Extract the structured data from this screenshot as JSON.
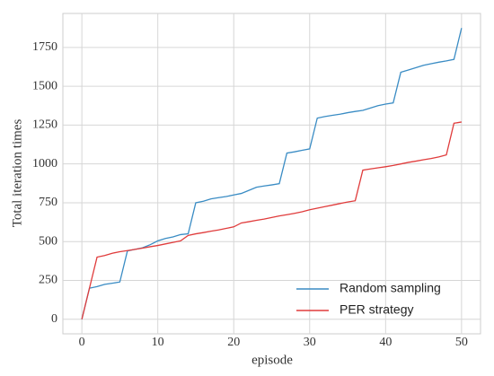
{
  "chart_data": {
    "type": "line",
    "xlabel": "episode",
    "ylabel": "Total iteration times",
    "x": [
      0,
      1,
      2,
      3,
      4,
      5,
      6,
      7,
      8,
      9,
      10,
      11,
      12,
      13,
      14,
      15,
      16,
      17,
      18,
      19,
      20,
      21,
      22,
      23,
      24,
      25,
      26,
      27,
      28,
      29,
      30,
      31,
      32,
      33,
      34,
      35,
      36,
      37,
      38,
      39,
      40,
      41,
      42,
      43,
      44,
      45,
      46,
      47,
      48,
      49,
      50
    ],
    "series": [
      {
        "name": "Random sampling",
        "color": "#3a8cc4",
        "values": [
          0,
          200,
          210,
          225,
          232,
          240,
          440,
          450,
          460,
          480,
          505,
          520,
          530,
          545,
          550,
          750,
          760,
          775,
          783,
          790,
          800,
          810,
          830,
          850,
          858,
          865,
          873,
          1070,
          1078,
          1088,
          1097,
          1295,
          1305,
          1313,
          1320,
          1330,
          1338,
          1345,
          1360,
          1375,
          1385,
          1393,
          1590,
          1605,
          1620,
          1635,
          1645,
          1655,
          1663,
          1673,
          1875
        ]
      },
      {
        "name": "PER strategy",
        "color": "#e03c3c",
        "values": [
          0,
          200,
          400,
          410,
          425,
          435,
          442,
          450,
          458,
          467,
          475,
          485,
          495,
          505,
          540,
          550,
          558,
          567,
          575,
          585,
          595,
          620,
          628,
          637,
          645,
          655,
          665,
          673,
          682,
          692,
          705,
          715,
          725,
          735,
          745,
          755,
          763,
          960,
          968,
          975,
          982,
          990,
          1000,
          1010,
          1018,
          1027,
          1035,
          1045,
          1058,
          1262,
          1270
        ]
      }
    ],
    "xlim": [
      -2.5,
      52.5
    ],
    "xticks": [
      0,
      10,
      20,
      30,
      40,
      50
    ],
    "ylim": [
      -93.75,
      1968.75
    ],
    "yticks": [
      0,
      250,
      500,
      750,
      1000,
      1250,
      1500,
      1750
    ],
    "grid": true,
    "legend": "lower right"
  }
}
